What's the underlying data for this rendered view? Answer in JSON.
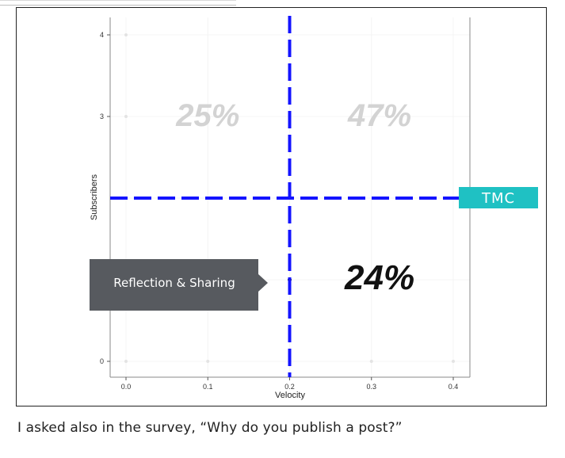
{
  "chart_data": {
    "type": "scatter",
    "xlabel": "Velocity",
    "ylabel": "Subscribers",
    "x_ticks": [
      "0.0",
      "0.1",
      "0.2",
      "0.3",
      "0.4"
    ],
    "y_ticks": [
      "0",
      "3",
      "4"
    ],
    "xlim": [
      -0.02,
      0.42
    ],
    "ylim": [
      -0.2,
      4.2
    ],
    "points": [
      {
        "x": 0.0,
        "y": 4.0
      },
      {
        "x": 0.0,
        "y": 3.0
      },
      {
        "x": 0.0,
        "y": 0.0
      },
      {
        "x": 0.1,
        "y": 0.0
      },
      {
        "x": 0.2,
        "y": 3.0
      },
      {
        "x": 0.2,
        "y": 1.0
      },
      {
        "x": 0.2,
        "y": 0.0
      },
      {
        "x": 0.3,
        "y": 0.0
      },
      {
        "x": 0.4,
        "y": 0.0
      }
    ],
    "threshold_x": 0.2,
    "threshold_y": 2.0,
    "quadrant_labels": [
      {
        "text": "25%",
        "x": 0.1,
        "y": 3.0,
        "style": "faded"
      },
      {
        "text": "47%",
        "x": 0.31,
        "y": 3.0,
        "style": "faded"
      },
      {
        "text": "24%",
        "x": 0.31,
        "y": 1.0,
        "style": "emphasis"
      }
    ],
    "marker_label": "TMC",
    "callout_label": "Reflection & Sharing",
    "grid": true,
    "colors": {
      "threshold": "#1414ff",
      "marker": "#1fc1c3",
      "callout": "#575a5f",
      "faded": "#d3d3d3"
    }
  },
  "caption": "I asked also in the survey, “Why do you publish a post?”"
}
